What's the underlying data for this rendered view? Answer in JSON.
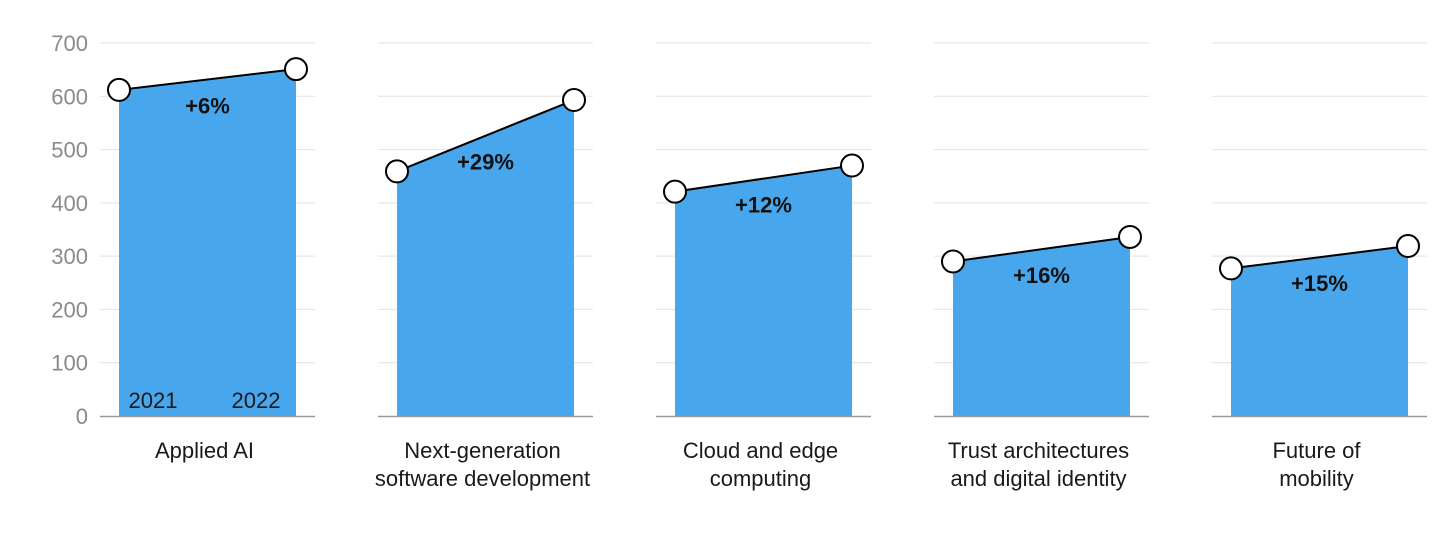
{
  "chart_data": {
    "type": "area",
    "y_ticks": [
      "0",
      "100",
      "200",
      "300",
      "400",
      "500",
      "600",
      "700"
    ],
    "ylim": [
      0,
      700
    ],
    "x_labels": [
      "2021",
      "2022"
    ],
    "grid": true,
    "colors": {
      "fill": "#48A6EC",
      "line": "#000000",
      "grid": "#e2e2e2",
      "axis": "#999999"
    },
    "panels": [
      {
        "name": "Applied AI",
        "label_lines": [
          "Applied AI"
        ],
        "values": [
          612,
          651
        ],
        "change": "+6%"
      },
      {
        "name": "Next-generation software development",
        "label_lines": [
          "Next-generation",
          "software development"
        ],
        "values": [
          459,
          593
        ],
        "change": "+29%"
      },
      {
        "name": "Cloud and edge computing",
        "label_lines": [
          "Cloud and edge",
          "computing"
        ],
        "values": [
          421,
          470
        ],
        "change": "+12%"
      },
      {
        "name": "Trust architectures and digital identity",
        "label_lines": [
          "Trust architectures",
          "and digital identity"
        ],
        "values": [
          290,
          336
        ],
        "change": "+16%"
      },
      {
        "name": "Future of mobility",
        "label_lines": [
          "Future of",
          "mobility"
        ],
        "values": [
          277,
          319
        ],
        "change": "+15%"
      }
    ]
  }
}
